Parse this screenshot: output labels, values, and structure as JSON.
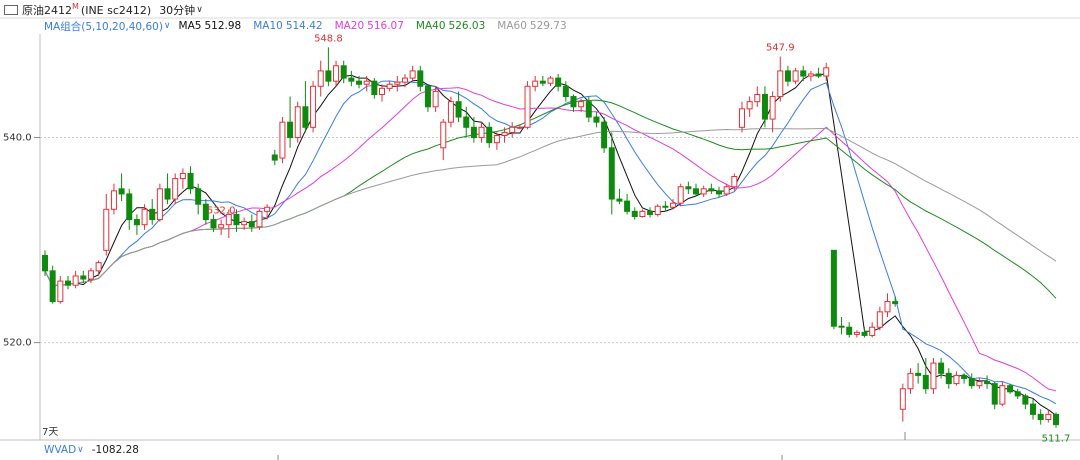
{
  "chart_data": {
    "type": "candlestick",
    "title": "原油2412",
    "title_sup": "M",
    "symbol": "(INE sc2412)",
    "period": "30分钟",
    "ma_group": "MA组合(5,10,20,40,60)",
    "ma": [
      {
        "name": "MA5",
        "value": 512.98,
        "color": "#111111"
      },
      {
        "name": "MA10",
        "value": 514.42,
        "color": "#3b7de0"
      },
      {
        "name": "MA20",
        "value": 516.07,
        "color": "#e03ce0"
      },
      {
        "name": "MA40",
        "value": 526.03,
        "color": "#1f8a1f"
      },
      {
        "name": "MA60",
        "value": 529.73,
        "color": "#9a9a9a"
      }
    ],
    "up_color": "#e8303a",
    "down_color": "#0f8a0f",
    "ylim": [
      510.5,
      550.1
    ],
    "yticks": [
      {
        "value": 520,
        "label": "520.0"
      },
      {
        "value": 540,
        "label": "540.0"
      }
    ],
    "grid": true,
    "annotations": [
      "548.8",
      "547.9",
      "532.0",
      "511.7"
    ],
    "range_label": "7天",
    "indicator": "WVAD",
    "indicator_value": -1082.28,
    "open": [
      528.5,
      527,
      524,
      526,
      525.6,
      526.5,
      526.2,
      527,
      529,
      533,
      535,
      534.5,
      532,
      531.5,
      533,
      532,
      535,
      534,
      536,
      536.5,
      535,
      533.5,
      532,
      531.2,
      531.5,
      532.5,
      531.5,
      531.8,
      531.3,
      532.8,
      538.3,
      538,
      541.5,
      540,
      543,
      541,
      545,
      546.5,
      545.5,
      547,
      545.8,
      545.5,
      545.2,
      545.5,
      544.2,
      544.8,
      545.2,
      545.4,
      545.8,
      546.5,
      545,
      543,
      539,
      541.5,
      543.5,
      542,
      541,
      540,
      541,
      539.5,
      540.2,
      540.5,
      541,
      541,
      545,
      545.5,
      545.3,
      545.8,
      545,
      544,
      543,
      543.5,
      542,
      541.5,
      539,
      534,
      533.8,
      532.8,
      532.3,
      532.8,
      532.5,
      533.3,
      533.2,
      533.6,
      535.2,
      535,
      534.5,
      535,
      534.8,
      534.5,
      535.2,
      541,
      542.8,
      543.5,
      544.2,
      541.8,
      544,
      546.5,
      545.5,
      546.5,
      546,
      546.2,
      546,
      529,
      521.6,
      521.5,
      520.8,
      521,
      520.7,
      521.5,
      523,
      524,
      513.5,
      515.5,
      517,
      516.8,
      515.5,
      518,
      517,
      516,
      516.8,
      516.5,
      515.8,
      516.2,
      516,
      514,
      515.8,
      515.2,
      514.8,
      514,
      513,
      512.5,
      513
    ],
    "high": [
      529,
      527.5,
      526.5,
      526.5,
      527,
      527,
      527.3,
      528,
      534.5,
      535.5,
      536.5,
      535,
      532.5,
      533.5,
      534,
      535.5,
      536.5,
      536.5,
      537,
      537.2,
      535.5,
      534,
      532.5,
      532,
      533,
      533,
      532.2,
      532.5,
      533,
      533.5,
      538.8,
      542,
      544,
      543.5,
      545.5,
      545.5,
      547.5,
      548.8,
      547.5,
      547.5,
      546.5,
      546,
      546,
      545.8,
      545.2,
      545.5,
      546,
      546.2,
      547,
      547,
      545.2,
      545,
      541.8,
      544,
      544.5,
      543,
      542,
      541.5,
      541.5,
      540.5,
      541,
      541.5,
      541.3,
      545.5,
      546,
      546,
      546,
      546.2,
      545.5,
      544.2,
      543.8,
      544,
      542.5,
      542,
      540.5,
      535,
      534.5,
      533.2,
      533,
      533.2,
      533.5,
      533.8,
      534,
      535.5,
      535.7,
      535.5,
      535.3,
      535.5,
      535.2,
      535.5,
      536.5,
      543.5,
      544,
      545,
      545,
      544.5,
      547.9,
      547,
      546.8,
      547,
      546.5,
      546.8,
      547.3,
      529,
      522.5,
      522,
      521.2,
      521.5,
      522,
      523.5,
      524.8,
      524.5,
      516,
      517.5,
      518,
      518.5,
      518.5,
      518.5,
      517.5,
      517.2,
      517,
      517,
      516.5,
      516.8,
      516.2,
      516.2,
      516,
      515.5,
      515,
      514.5,
      513.5,
      513.5,
      513.2
    ],
    "low": [
      526.5,
      523.8,
      523.8,
      525.2,
      525.3,
      525.8,
      525.8,
      526.5,
      528.5,
      532.5,
      533.8,
      531,
      530.5,
      531,
      531.5,
      531.8,
      533.5,
      533.5,
      535,
      534.5,
      532.5,
      531.5,
      530.8,
      530.5,
      530.2,
      530.8,
      531,
      530.8,
      531,
      532,
      537.3,
      537.5,
      539,
      539.5,
      540.5,
      540.5,
      544,
      545,
      545,
      545.3,
      545,
      544.8,
      544.5,
      543.8,
      543.5,
      544.5,
      544.5,
      544.9,
      545.5,
      544.5,
      542.5,
      542.5,
      537.8,
      541,
      541.5,
      540,
      539.5,
      539.5,
      539,
      538.8,
      539.5,
      540,
      540.8,
      540.8,
      544.5,
      545,
      545,
      544.5,
      543.5,
      542.5,
      542.5,
      541.5,
      541,
      538.5,
      532.5,
      533.5,
      532.5,
      532,
      532.2,
      532.2,
      532.3,
      532.8,
      533,
      533.3,
      534.5,
      534.3,
      534.2,
      534.5,
      534.2,
      534.3,
      534.8,
      540.5,
      542,
      543,
      541,
      540.5,
      543.5,
      545,
      545.2,
      545.5,
      545.5,
      545.8,
      545.5,
      521.3,
      520.8,
      520.5,
      520.5,
      520.5,
      520.5,
      521.2,
      522.5,
      523.5,
      512.3,
      515,
      516,
      515,
      515,
      516.5,
      515.5,
      515.8,
      516,
      515.5,
      515.5,
      515.5,
      513.5,
      513.8,
      515,
      514.5,
      513.5,
      512.5,
      512,
      512.2,
      511.7
    ],
    "close": [
      527,
      524,
      526,
      525.6,
      526.5,
      526.2,
      527,
      527.8,
      533,
      534.8,
      534.5,
      532,
      531.5,
      533,
      532,
      535,
      534,
      536,
      536.5,
      535,
      533.5,
      532,
      531.2,
      531.5,
      532.5,
      531.5,
      531.8,
      531.3,
      532.8,
      533.2,
      537.8,
      541.5,
      540,
      543,
      541,
      545,
      546.5,
      545.5,
      547,
      545.8,
      545.5,
      545.2,
      545.5,
      544.2,
      544.8,
      545.2,
      545.4,
      545.8,
      546.5,
      545,
      543,
      544.5,
      541.5,
      543.5,
      542,
      541,
      540,
      541,
      539.5,
      540.2,
      540.5,
      541,
      541,
      545,
      545.5,
      545.3,
      545.8,
      545,
      544,
      543,
      543.5,
      542,
      541.5,
      539,
      534,
      533.8,
      532.8,
      532.3,
      532.8,
      532.5,
      533.3,
      533.2,
      533.6,
      535.2,
      535,
      534.5,
      535,
      534.8,
      534.5,
      535.2,
      536.2,
      542.8,
      543.5,
      544.2,
      541.8,
      544,
      546.5,
      545.5,
      546.5,
      546,
      546.2,
      546,
      546.8,
      521.6,
      521.5,
      520.8,
      521,
      520.7,
      521.5,
      523,
      524,
      523.8,
      515.5,
      517,
      516.8,
      515.5,
      518,
      517,
      516,
      516.8,
      516.5,
      515.8,
      516.2,
      516,
      514,
      515.8,
      515.2,
      514.8,
      514,
      513,
      512.5,
      513,
      512
    ]
  }
}
